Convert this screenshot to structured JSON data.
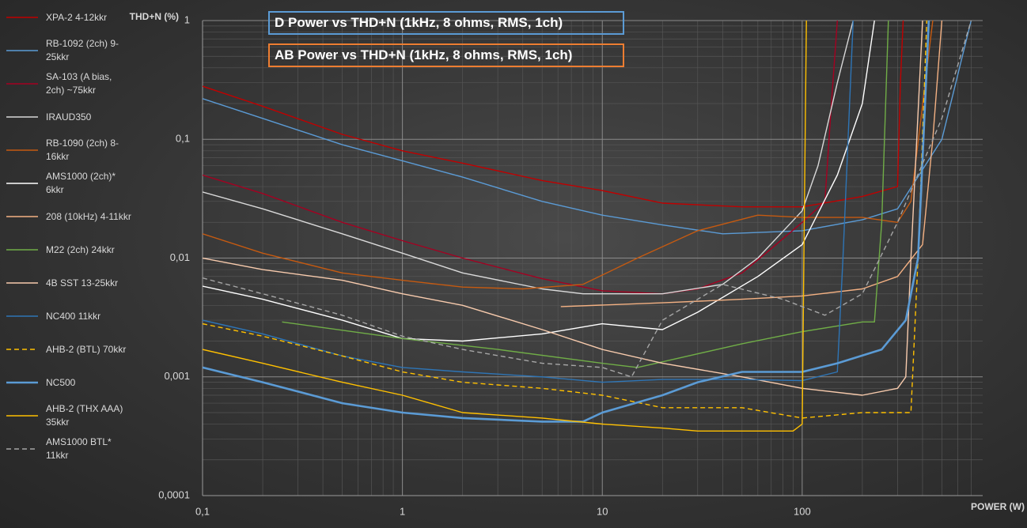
{
  "chart_data": {
    "type": "line",
    "titles": [
      "D Power vs THD+N (1kHz, 8 ohms, RMS, 1ch)",
      "AB Power vs THD+N (1kHz, 8 ohms, RMS, 1ch)"
    ],
    "title_colors": [
      "#5b9bd5",
      "#ed7d31"
    ],
    "y_label": "THD+N (%)",
    "x_label": "POWER (W)",
    "log_x": true,
    "log_y": true,
    "xlim": [
      0.1,
      800
    ],
    "ylim": [
      0.0001,
      1
    ],
    "xticks": [
      {
        "value": 0.1,
        "label": "0,1"
      },
      1,
      10,
      100
    ],
    "yticks": [
      {
        "value": 0.0001,
        "label": "0,0001"
      },
      {
        "value": 0.001,
        "label": "0,001"
      },
      {
        "value": 0.01,
        "label": "0,01"
      },
      {
        "value": 0.1,
        "label": "0,1"
      },
      1
    ],
    "grid": true,
    "minor_grid": true,
    "legend": "left",
    "series": [
      {
        "name": "XPA-2 4-12kkr",
        "color": "#c00000",
        "dash": false,
        "x": [
          0.1,
          0.2,
          0.5,
          1,
          2,
          5,
          10,
          20,
          50,
          100,
          200,
          300,
          310,
          320
        ],
        "values": [
          0.28,
          0.19,
          0.11,
          0.08,
          0.063,
          0.045,
          0.037,
          0.029,
          0.027,
          0.027,
          0.033,
          0.04,
          0.3,
          1
        ]
      },
      {
        "name": "RB-1092 (2ch) 9-25kkr",
        "color": "#5b9bd5",
        "dash": false,
        "x": [
          0.1,
          0.2,
          0.5,
          1,
          2,
          5,
          10,
          20,
          40,
          100,
          200,
          300,
          500,
          700
        ],
        "values": [
          0.22,
          0.15,
          0.09,
          0.066,
          0.048,
          0.03,
          0.023,
          0.019,
          0.016,
          0.017,
          0.021,
          0.026,
          0.1,
          1
        ]
      },
      {
        "name": "SA-103 (A bias, 2ch) ~75kkr",
        "color": "#a50021",
        "dash": false,
        "x": [
          0.1,
          0.2,
          0.5,
          1,
          2,
          5,
          10,
          20,
          30,
          50,
          70,
          100,
          130,
          140,
          150
        ],
        "values": [
          0.05,
          0.035,
          0.02,
          0.014,
          0.01,
          0.0067,
          0.0053,
          0.005,
          0.0055,
          0.0075,
          0.012,
          0.02,
          0.03,
          0.2,
          1
        ]
      },
      {
        "name": "IRAUD350",
        "color": "#d9d9d9",
        "dash": false,
        "x": [
          0.1,
          0.2,
          0.5,
          1,
          2,
          5,
          8,
          20,
          40,
          60,
          100,
          120,
          150,
          180
        ],
        "values": [
          0.036,
          0.026,
          0.016,
          0.011,
          0.0075,
          0.0055,
          0.005,
          0.005,
          0.006,
          0.01,
          0.025,
          0.06,
          0.3,
          1
        ]
      },
      {
        "name": "RB-1090 (2ch) 8-16kkr",
        "color": "#c55a11",
        "dash": false,
        "x": [
          0.1,
          0.2,
          0.5,
          1,
          2,
          4,
          8,
          15,
          30,
          60,
          100,
          200,
          300,
          350,
          450
        ],
        "values": [
          0.016,
          0.011,
          0.0075,
          0.0065,
          0.0057,
          0.0055,
          0.006,
          0.01,
          0.017,
          0.023,
          0.022,
          0.022,
          0.02,
          0.03,
          1
        ]
      },
      {
        "name": "AMS1000 (2ch)* 6kkr",
        "color": "#ffffff",
        "dash": false,
        "x": [
          0.1,
          0.2,
          0.5,
          1,
          2,
          5,
          10,
          20,
          30,
          60,
          100,
          150,
          200,
          230
        ],
        "values": [
          0.0058,
          0.0045,
          0.003,
          0.0021,
          0.002,
          0.0023,
          0.0028,
          0.0025,
          0.0035,
          0.007,
          0.013,
          0.05,
          0.2,
          1
        ]
      },
      {
        "name": "208 (10kHz) 4-11kkr",
        "color": "#f4b183",
        "dash": false,
        "x": [
          6.2,
          20,
          50,
          100,
          200,
          300,
          400,
          450,
          500
        ],
        "values": [
          0.0039,
          0.0042,
          0.0045,
          0.0048,
          0.0055,
          0.007,
          0.013,
          0.1,
          1
        ]
      },
      {
        "name": "M22 (2ch) 24kkr",
        "color": "#70ad47",
        "dash": false,
        "x": [
          0.25,
          1,
          3,
          10,
          15,
          50,
          100,
          200,
          230,
          250,
          270
        ],
        "values": [
          0.0029,
          0.0021,
          0.0017,
          0.0013,
          0.0012,
          0.0019,
          0.0024,
          0.0029,
          0.0029,
          0.02,
          1
        ]
      },
      {
        "name": "4B SST 13-25kkr",
        "color": "#f8cbad",
        "dash": false,
        "x": [
          0.1,
          0.2,
          0.5,
          1,
          2,
          5,
          10,
          20,
          50,
          100,
          200,
          300,
          330,
          350,
          400
        ],
        "values": [
          0.01,
          0.008,
          0.0065,
          0.005,
          0.004,
          0.0025,
          0.0017,
          0.0013,
          0.001,
          0.0008,
          0.0007,
          0.0008,
          0.001,
          0.01,
          1
        ]
      },
      {
        "name": "NC400 11kkr",
        "color": "#2e75b6",
        "dash": false,
        "x": [
          0.1,
          0.2,
          0.5,
          1,
          2,
          5,
          10,
          20,
          50,
          100,
          150,
          160,
          180
        ],
        "values": [
          0.003,
          0.0023,
          0.0015,
          0.0012,
          0.0011,
          0.001,
          0.0009,
          0.00095,
          0.00095,
          0.00093,
          0.0011,
          0.01,
          1
        ]
      },
      {
        "name": "AHB-2 (BTL) 70kkr",
        "color": "#ffc000",
        "dash": true,
        "x": [
          0.1,
          0.2,
          0.5,
          1,
          2,
          5,
          10,
          20,
          50,
          100,
          200,
          350,
          380,
          420
        ],
        "values": [
          0.0028,
          0.0022,
          0.0015,
          0.0011,
          0.0009,
          0.0008,
          0.0007,
          0.00055,
          0.00055,
          0.00045,
          0.0005,
          0.0005,
          0.01,
          1
        ]
      },
      {
        "name": "NC500",
        "color": "#5b9bd5",
        "dash": false,
        "thick": true,
        "x": [
          0.1,
          0.2,
          0.5,
          1,
          2,
          5,
          8,
          10,
          20,
          30,
          50,
          100,
          150,
          250,
          330,
          380,
          430
        ],
        "values": [
          0.0012,
          0.0009,
          0.0006,
          0.0005,
          0.00045,
          0.00042,
          0.00042,
          0.0005,
          0.0007,
          0.0009,
          0.0011,
          0.0011,
          0.0013,
          0.0017,
          0.003,
          0.01,
          1
        ]
      },
      {
        "name": "AHB-2 (THX AAA) 35kkr",
        "color": "#ffc000",
        "dash": false,
        "x": [
          0.1,
          0.2,
          0.5,
          1,
          2,
          5,
          10,
          20,
          30,
          90,
          100,
          102,
          105
        ],
        "values": [
          0.0017,
          0.0013,
          0.0009,
          0.0007,
          0.0005,
          0.00045,
          0.0004,
          0.00037,
          0.00035,
          0.00035,
          0.0004,
          0.01,
          1
        ]
      },
      {
        "name": "AMS1000 BTL* 11kkr",
        "color": "#a6a6a6",
        "dash": true,
        "x": [
          0.1,
          0.2,
          0.5,
          1,
          2,
          5,
          10,
          14,
          20,
          40,
          80,
          130,
          200,
          300,
          500,
          700
        ],
        "values": [
          0.0068,
          0.005,
          0.0033,
          0.0022,
          0.0017,
          0.0013,
          0.0012,
          0.001,
          0.003,
          0.006,
          0.0045,
          0.0033,
          0.005,
          0.02,
          0.15,
          1
        ]
      }
    ]
  }
}
